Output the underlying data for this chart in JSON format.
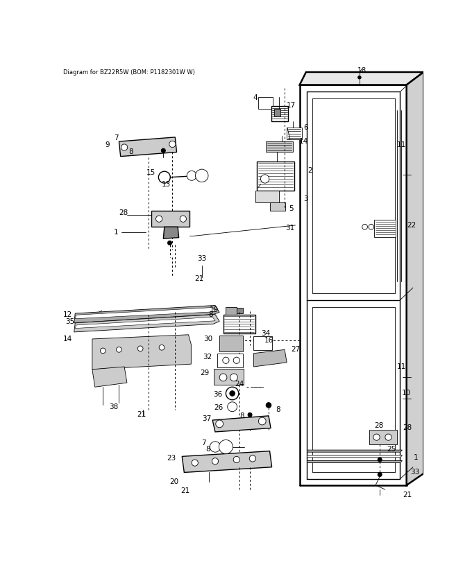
{
  "title": "Diagram for BZ22R5W (BOM: P1182301W W)",
  "bg_color": "#ffffff",
  "fig_width": 6.8,
  "fig_height": 8.15,
  "dpi": 100
}
